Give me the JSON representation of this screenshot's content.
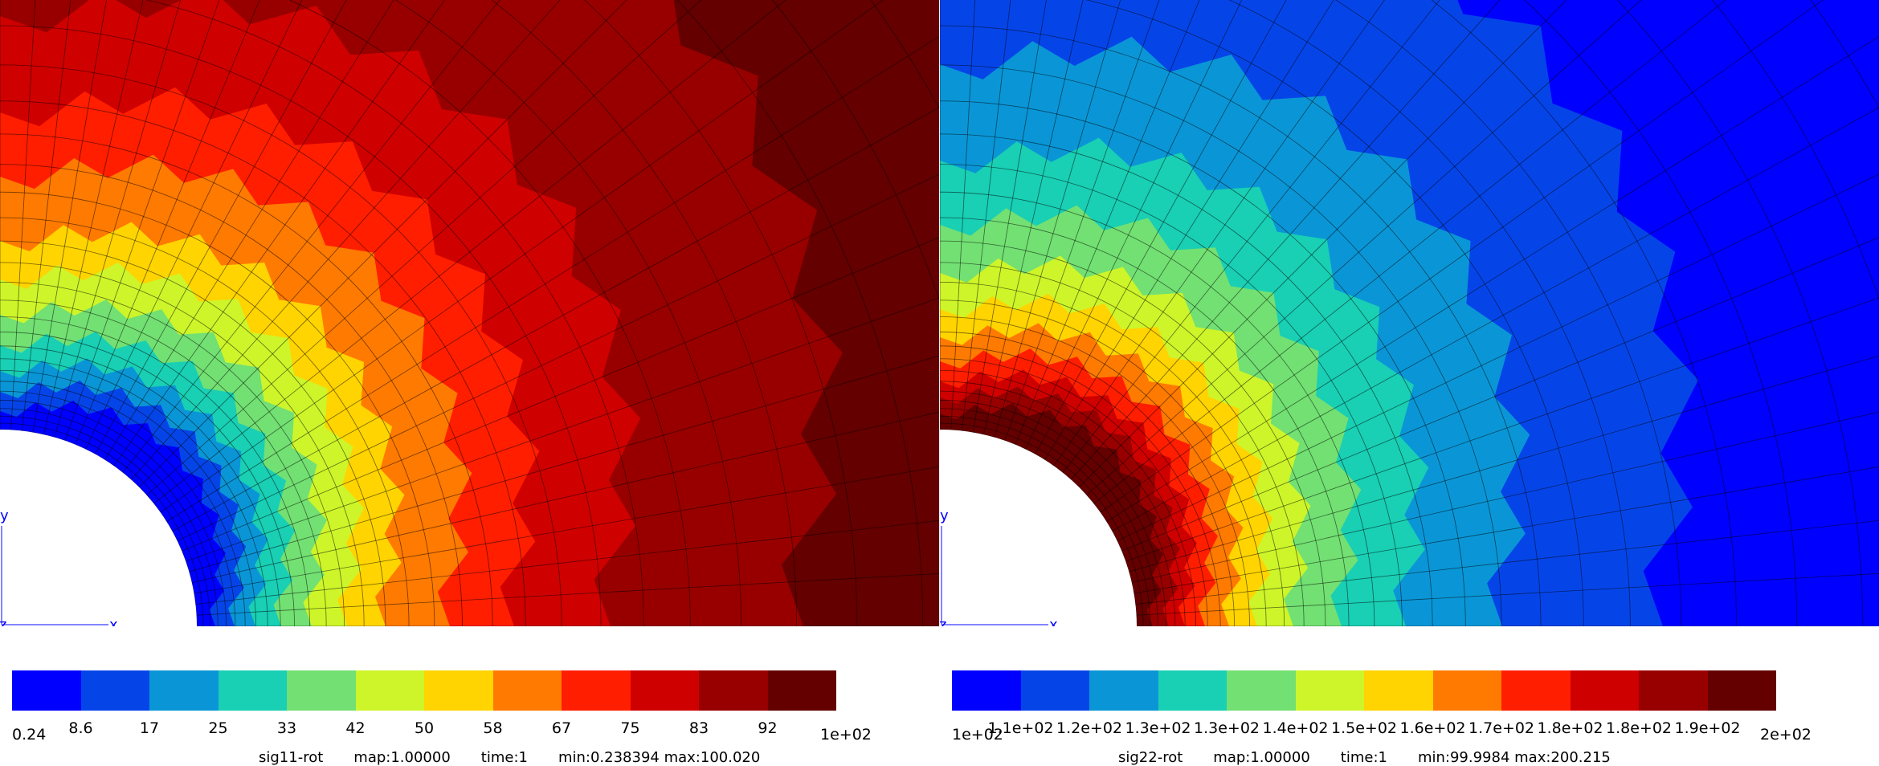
{
  "chart_data": [
    {
      "type": "heatmap",
      "field": "sig11-rot",
      "axes": {
        "x": "x",
        "y": "y",
        "z": "z"
      },
      "colormap_bins": [
        "#0000ff",
        "#0545e8",
        "#0a96d6",
        "#19cfb4",
        "#72e072",
        "#cdf52a",
        "#ffd400",
        "#ff7a00",
        "#ff1e00",
        "#cf0000",
        "#980000",
        "#640000"
      ],
      "tick_labels": [
        "0.24",
        "8.6",
        "17",
        "25",
        "33",
        "42",
        "50",
        "58",
        "67",
        "75",
        "83",
        "92",
        "1e+02"
      ],
      "caption": {
        "field": "sig11-rot",
        "map": "map:1.00000",
        "time": "time:1",
        "range": "min:0.238394 max:100.020"
      },
      "min": 0.238394,
      "max": 100.02,
      "field_trend": "increasing with distance from hole"
    },
    {
      "type": "heatmap",
      "field": "sig22-rot",
      "axes": {
        "x": "x",
        "y": "y",
        "z": "z"
      },
      "colormap_bins": [
        "#0000ff",
        "#0545e8",
        "#0a96d6",
        "#19cfb4",
        "#72e072",
        "#cdf52a",
        "#ffd400",
        "#ff7a00",
        "#ff1e00",
        "#cf0000",
        "#980000",
        "#640000"
      ],
      "tick_labels": [
        "1e+02",
        "1.1e+02",
        "1.2e+02",
        "1.3e+02",
        "1.3e+02",
        "1.4e+02",
        "1.5e+02",
        "1.6e+02",
        "1.7e+02",
        "1.8e+02",
        "1.8e+02",
        "1.9e+02",
        "2e+02"
      ],
      "caption": {
        "field": "sig22-rot",
        "map": "map:1.00000",
        "time": "time:1",
        "range": "min:99.9984 max:200.215"
      },
      "min": 99.9984,
      "max": 200.215,
      "field_trend": "decreasing with distance from hole"
    }
  ]
}
